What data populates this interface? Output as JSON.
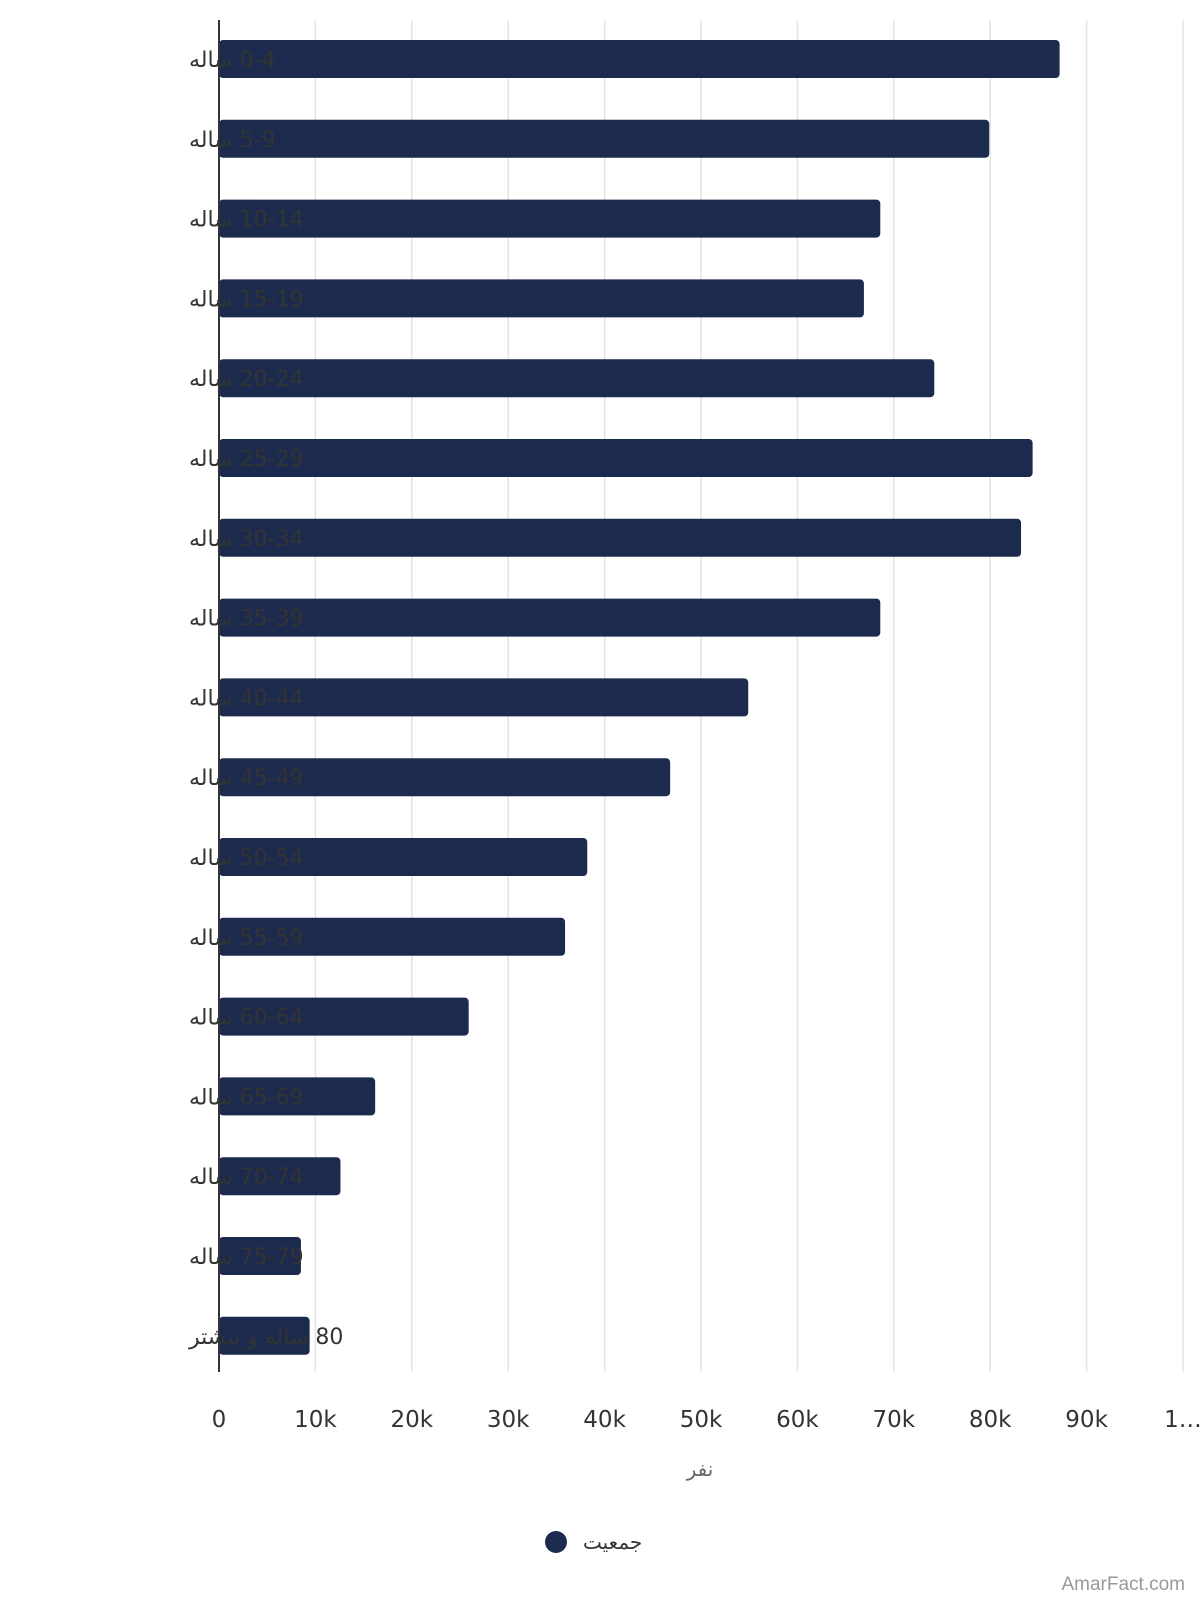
{
  "chart_data": {
    "type": "bar",
    "orientation": "horizontal",
    "categories": [
      "0-4 ساله",
      "5-9 ساله",
      "10-14 ساله",
      "15-19 ساله",
      "20-24 ساله",
      "25-29 ساله",
      "30-34 ساله",
      "35-39 ساله",
      "40-44 ساله",
      "45-49 ساله",
      "50-54 ساله",
      "55-59 ساله",
      "60-64 ساله",
      "65-69 ساله",
      "70-74 ساله",
      "75-79 ساله",
      "80 ساله و بیشتر"
    ],
    "series": [
      {
        "name": "جمعیت",
        "color": "#1c2b4d",
        "values": [
          87200,
          79900,
          68600,
          66900,
          74200,
          84400,
          83200,
          68600,
          54900,
          46800,
          38200,
          35900,
          25900,
          16200,
          12600,
          8500,
          9400
        ]
      }
    ],
    "xlim": [
      0,
      100000
    ],
    "xticks": [
      "0",
      "10k",
      "20k",
      "30k",
      "40k",
      "50k",
      "60k",
      "70k",
      "80k",
      "90k",
      "1…"
    ],
    "xlabel": "نفر",
    "ylabel": "",
    "title": "",
    "grid": true,
    "legend_position": "bottom"
  },
  "watermark": "AmarFact.com"
}
